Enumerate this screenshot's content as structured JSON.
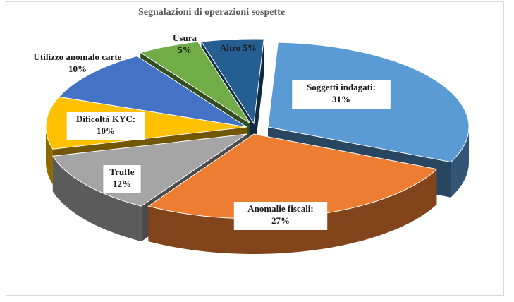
{
  "chart_data": {
    "type": "pie",
    "title": "Segnalazioni di operazioni sospette",
    "slices": [
      {
        "label": "Soggetti indagati:",
        "value": 31,
        "value_label": "31%",
        "color": "#5b9bd5"
      },
      {
        "label": "Anomalie fiscali:",
        "value": 27,
        "value_label": "27%",
        "color": "#ed7d31"
      },
      {
        "label": "Truffe",
        "value": 12,
        "value_label": "12%",
        "color": "#a5a5a5"
      },
      {
        "label": "Dificoltà KYC:",
        "value": 10,
        "value_label": "10%",
        "color": "#ffc000"
      },
      {
        "label": "Utilizzo anomalo carte",
        "value": 10,
        "value_label": "10%",
        "color": "#4472c4"
      },
      {
        "label": "Usura",
        "value": 5,
        "value_label": "5%",
        "color": "#70ad47"
      },
      {
        "label": "Altro",
        "value": 5,
        "value_label": "5%",
        "color": "#255e91"
      }
    ]
  }
}
